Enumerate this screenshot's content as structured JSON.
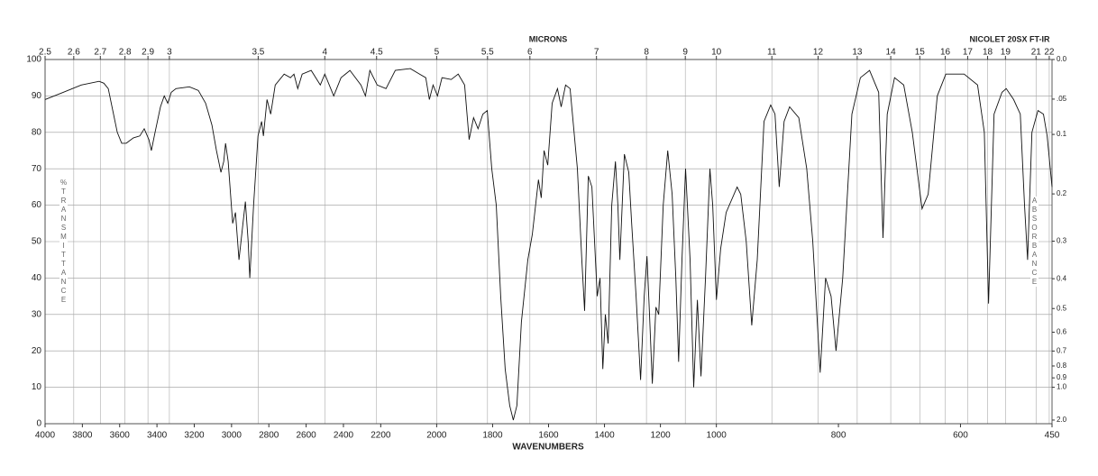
{
  "chart_data": {
    "type": "line",
    "title": "NICOLET 20SX FT-IR",
    "x2label": "MICRONS",
    "xlabel": "WAVENUMBERS",
    "ylabel": "%TRANSMITTANCE",
    "y2label": "ABSORBANCE",
    "xlim": [
      4000,
      450
    ],
    "x_breaks": [
      2200,
      1000
    ],
    "xticks": [
      4000,
      3800,
      3600,
      3400,
      3200,
      3000,
      2800,
      2600,
      2400,
      2200,
      2000,
      1800,
      1600,
      1400,
      1200,
      1000,
      800,
      600,
      450
    ],
    "x2ticks": [
      2.5,
      2.6,
      2.7,
      2.8,
      2.9,
      3,
      3.5,
      4,
      4.5,
      5,
      5.5,
      6,
      7,
      8,
      9,
      10,
      11,
      12,
      13,
      14,
      15,
      16,
      17,
      18,
      19,
      21,
      22
    ],
    "x2_scale": "microns",
    "ylim": [
      0,
      100
    ],
    "yticks": [
      0,
      10,
      20,
      30,
      40,
      50,
      60,
      70,
      80,
      90,
      100
    ],
    "y2_scale": "absorbance",
    "y2ticks": [
      {
        "value": 0,
        "label": "0.0"
      },
      {
        "value": 0.05,
        "label": ".05"
      },
      0.1,
      0.2,
      0.3,
      0.4,
      0.5,
      0.6,
      0.7,
      0.8,
      0.9,
      {
        "value": 1,
        "label": "1.0"
      },
      {
        "value": 2,
        "label": "2.0"
      }
    ],
    "grid": true,
    "x": [
      4000,
      3903,
      3806,
      3710,
      3685,
      3661,
      3637,
      3613,
      3589,
      3565,
      3526,
      3492,
      3468,
      3443,
      3430,
      3410,
      3381,
      3361,
      3342,
      3323,
      3298,
      3226,
      3178,
      3139,
      3105,
      3081,
      3057,
      3042,
      3032,
      3018,
      2994,
      2979,
      2960,
      2945,
      2926,
      2911,
      2902,
      2882,
      2858,
      2839,
      2829,
      2810,
      2790,
      2766,
      2718,
      2684,
      2665,
      2645,
      2621,
      2573,
      2524,
      2500,
      2452,
      2413,
      2365,
      2306,
      2282,
      2258,
      2219,
      2181,
      2148,
      2094,
      2061,
      2039,
      2026,
      2013,
      1997,
      1981,
      1948,
      1923,
      1900,
      1884,
      1868,
      1852,
      1835,
      1819,
      1803,
      1787,
      1771,
      1755,
      1739,
      1726,
      1713,
      1697,
      1674,
      1658,
      1636,
      1626,
      1616,
      1603,
      1587,
      1568,
      1555,
      1539,
      1523,
      1497,
      1481,
      1471,
      1458,
      1445,
      1426,
      1416,
      1406,
      1397,
      1387,
      1374,
      1361,
      1352,
      1345,
      1329,
      1313,
      1303,
      1287,
      1271,
      1258,
      1248,
      1239,
      1229,
      1216,
      1206,
      1190,
      1174,
      1158,
      1145,
      1135,
      1123,
      1110,
      1094,
      1081,
      1068,
      1055,
      1039,
      1023,
      1013,
      1000,
      993,
      984,
      966,
      960,
      951,
      942,
      933,
      922,
      911,
      904,
      897,
      889,
      880,
      865,
      852,
      842,
      830,
      821,
      812,
      804,
      793,
      778,
      764,
      749,
      734,
      727,
      720,
      708,
      693,
      679,
      663,
      653,
      638,
      624,
      594,
      572,
      561,
      554,
      545,
      532,
      525,
      513,
      502,
      495,
      490,
      483,
      473,
      464,
      458,
      450
    ],
    "series": [
      {
        "color": "#111111",
        "values": [
          89,
          91,
          93,
          94,
          93.5,
          92,
          86,
          80,
          77,
          77,
          78.5,
          79,
          81,
          78,
          75,
          80,
          87,
          90,
          88,
          91,
          92,
          92.5,
          91.5,
          88,
          82,
          75,
          69,
          72,
          77,
          72,
          55,
          58,
          45,
          52,
          61,
          50,
          40,
          60,
          79,
          83,
          79,
          89,
          85,
          93,
          96,
          95,
          96,
          92,
          96,
          97,
          93,
          96,
          90,
          95,
          97,
          93,
          90,
          97,
          93,
          92,
          97,
          97.5,
          96,
          95,
          89,
          93,
          90,
          95,
          94.5,
          96,
          93,
          78,
          84,
          81,
          85,
          86,
          70,
          60,
          35,
          15,
          5,
          1,
          5,
          28,
          45,
          52,
          67,
          62,
          75,
          71,
          88,
          92,
          87,
          93,
          92,
          70,
          45,
          31,
          68,
          65,
          35,
          40,
          15,
          30,
          22,
          60,
          72,
          60,
          45,
          74,
          69,
          55,
          35,
          12,
          35,
          46,
          30,
          11,
          32,
          30,
          60,
          75,
          63,
          40,
          17,
          45,
          70,
          45,
          10,
          34,
          13,
          40,
          70,
          60,
          34,
          48,
          58,
          65,
          63,
          50,
          27,
          45,
          83,
          87.5,
          85,
          65,
          83,
          87,
          84,
          70,
          50,
          14,
          40,
          35,
          20,
          40,
          85,
          95,
          97,
          91,
          51,
          85,
          95,
          93,
          80,
          59,
          63,
          90,
          96,
          96,
          93,
          80,
          33,
          85,
          91,
          92,
          89,
          85,
          60,
          45,
          80,
          86,
          85,
          79,
          65
        ]
      }
    ]
  }
}
